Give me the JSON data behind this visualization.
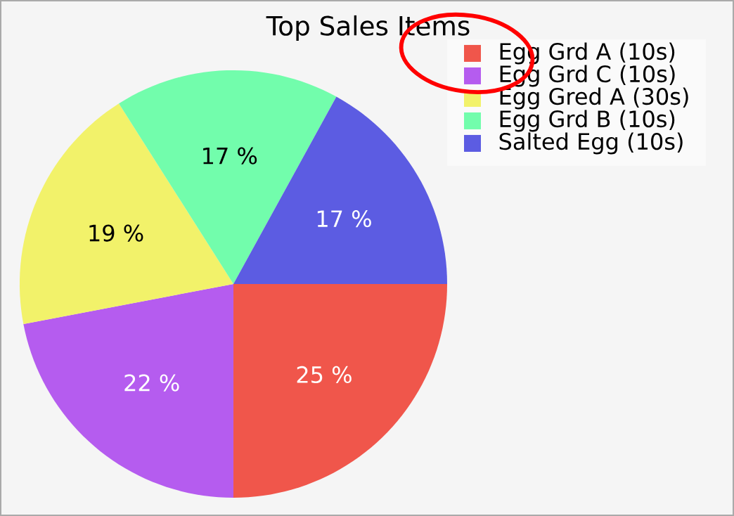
{
  "chart_data": {
    "type": "pie",
    "title": "Top Sales Items",
    "categories": [
      "Egg Grd A (10s)",
      "Egg Grd C (10s)",
      "Egg Gred A (30s)",
      "Egg Grd B (10s)",
      "Salted Egg (10s)"
    ],
    "values": [
      25,
      22,
      19,
      17,
      17
    ],
    "colors": [
      "#f0564b",
      "#b55cef",
      "#f2f26a",
      "#72fdac",
      "#5c5ce2"
    ],
    "value_labels": [
      "25 %",
      "22 %",
      "19 %",
      "17 %",
      "17 %"
    ],
    "legend": "top right"
  }
}
